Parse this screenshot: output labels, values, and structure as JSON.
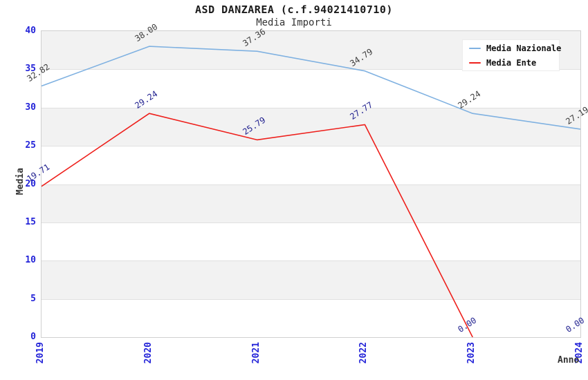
{
  "chart_data": {
    "type": "line",
    "title": "ASD DANZAREA (c.f.94021410710)",
    "subtitle": "Media Importi",
    "xlabel": "Anno",
    "ylabel": "Media",
    "categories": [
      "2019",
      "2020",
      "2021",
      "2022",
      "2023",
      "2024"
    ],
    "yticks": [
      0,
      5,
      10,
      15,
      20,
      25,
      30,
      35,
      40
    ],
    "ylim": [
      0,
      40
    ],
    "grid": "horizontal-alternating-bands",
    "legend_position": "top-right",
    "series": [
      {
        "name": "Media Nazionale",
        "color": "#7fb1e1",
        "label_color": "#3c3c3c",
        "values": [
          32.82,
          38.0,
          37.36,
          34.79,
          29.24,
          27.19
        ]
      },
      {
        "name": "Media Ente",
        "color": "#ee1f1b",
        "label_color": "#20208f",
        "values": [
          19.71,
          29.24,
          25.79,
          27.77,
          0.0,
          0.0
        ]
      }
    ]
  },
  "colors": {
    "tick_label": "#2323d8",
    "band_gray": "#f2f2f2",
    "gridline": "#e0e0e0",
    "plot_border": "#d0d0d0",
    "title": "#1a1a1a",
    "subtitle": "#333333",
    "axis_title": "#333333"
  }
}
